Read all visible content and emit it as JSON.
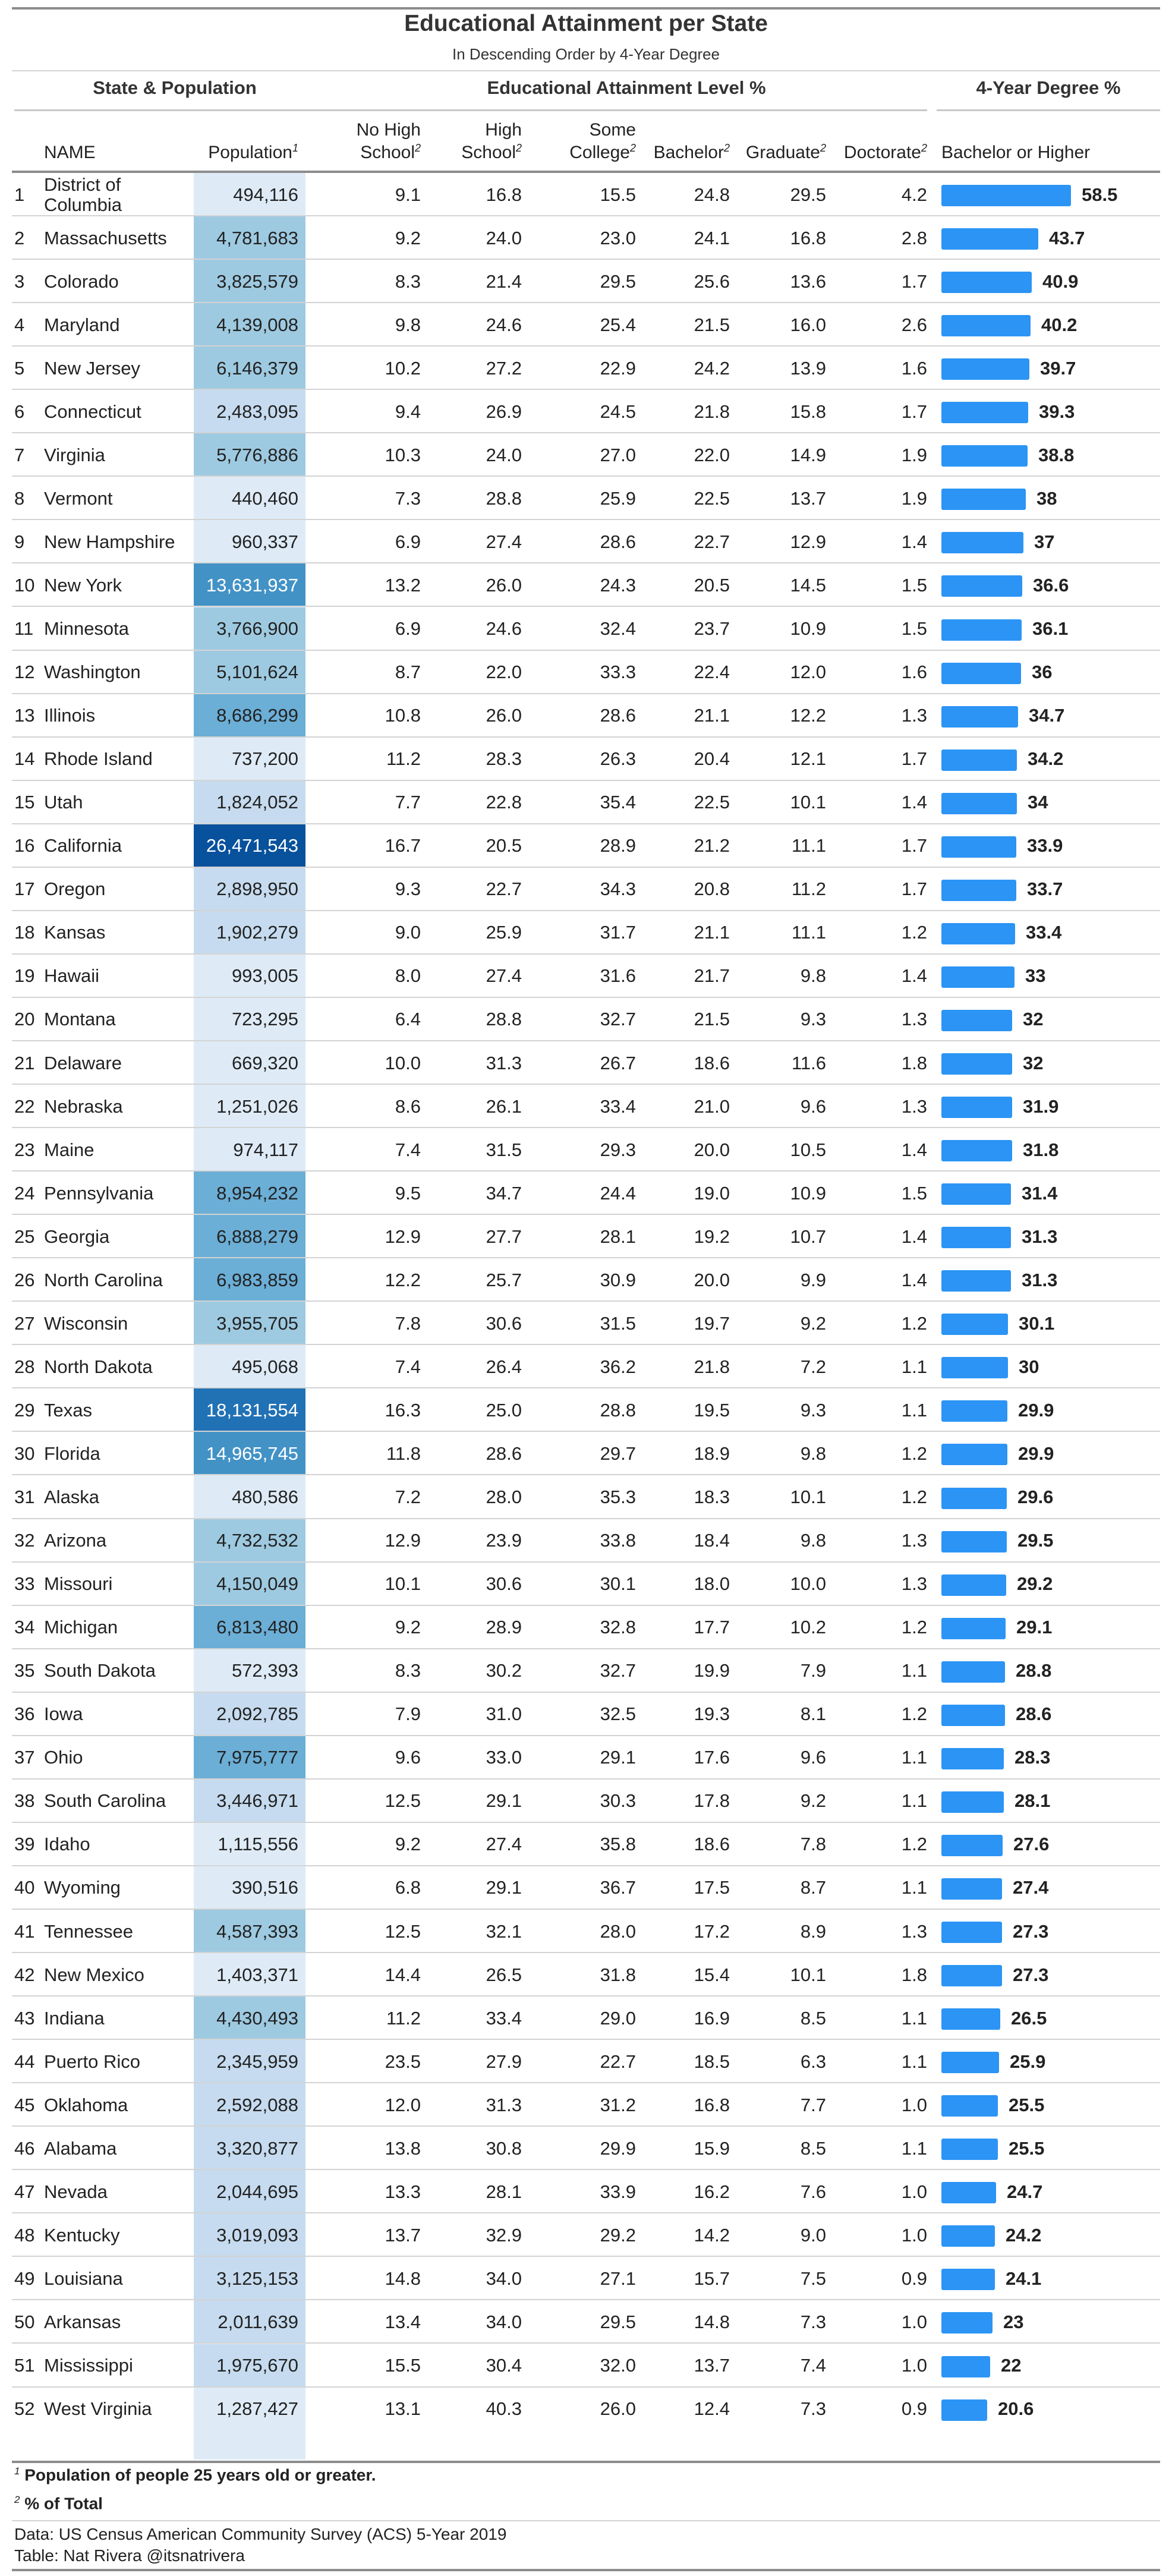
{
  "title": "Educational Attainment per State",
  "subtitle": "In Descending Order by 4-Year Degree",
  "spanners": {
    "state_pop": "State & Population",
    "edu": "Educational Attainment Level %",
    "degree": "4-Year Degree %"
  },
  "columns": {
    "name": "NAME",
    "population": "Population",
    "population_sup": "1",
    "no_hs_1": "No High",
    "no_hs_2": "School",
    "hs_1": "High",
    "hs_2": "School",
    "some_1": "Some",
    "some_2": "College",
    "bachelor": "Bachelor",
    "graduate": "Graduate",
    "doctorate": "Doctorate",
    "pct_sup": "2",
    "degree": "Bachelor or Higher"
  },
  "colors": {
    "bar": "#2b94f4",
    "pop_scale": [
      "#deebf7",
      "#c6dbef",
      "#9ecae1",
      "#6baed6",
      "#4292c6",
      "#2171b5",
      "#08519c"
    ]
  },
  "chart_data": {
    "type": "table",
    "title": "Educational Attainment per State",
    "subtitle": "In Descending Order by 4-Year Degree",
    "bar_column": "Bachelor or Higher",
    "bar_max": 58.5,
    "rows": [
      {
        "rank": "1",
        "name": "District of Columbia",
        "pop": "494,116",
        "no_hs": "9.1",
        "hs": "16.8",
        "some": "15.5",
        "bach": "24.8",
        "grad": "29.5",
        "doc": "4.2",
        "deg": "58.5"
      },
      {
        "rank": "2",
        "name": "Massachusetts",
        "pop": "4,781,683",
        "no_hs": "9.2",
        "hs": "24.0",
        "some": "23.0",
        "bach": "24.1",
        "grad": "16.8",
        "doc": "2.8",
        "deg": "43.7"
      },
      {
        "rank": "3",
        "name": "Colorado",
        "pop": "3,825,579",
        "no_hs": "8.3",
        "hs": "21.4",
        "some": "29.5",
        "bach": "25.6",
        "grad": "13.6",
        "doc": "1.7",
        "deg": "40.9"
      },
      {
        "rank": "4",
        "name": "Maryland",
        "pop": "4,139,008",
        "no_hs": "9.8",
        "hs": "24.6",
        "some": "25.4",
        "bach": "21.5",
        "grad": "16.0",
        "doc": "2.6",
        "deg": "40.2"
      },
      {
        "rank": "5",
        "name": "New Jersey",
        "pop": "6,146,379",
        "no_hs": "10.2",
        "hs": "27.2",
        "some": "22.9",
        "bach": "24.2",
        "grad": "13.9",
        "doc": "1.6",
        "deg": "39.7"
      },
      {
        "rank": "6",
        "name": "Connecticut",
        "pop": "2,483,095",
        "no_hs": "9.4",
        "hs": "26.9",
        "some": "24.5",
        "bach": "21.8",
        "grad": "15.8",
        "doc": "1.7",
        "deg": "39.3"
      },
      {
        "rank": "7",
        "name": "Virginia",
        "pop": "5,776,886",
        "no_hs": "10.3",
        "hs": "24.0",
        "some": "27.0",
        "bach": "22.0",
        "grad": "14.9",
        "doc": "1.9",
        "deg": "38.8"
      },
      {
        "rank": "8",
        "name": "Vermont",
        "pop": "440,460",
        "no_hs": "7.3",
        "hs": "28.8",
        "some": "25.9",
        "bach": "22.5",
        "grad": "13.7",
        "doc": "1.9",
        "deg": "38"
      },
      {
        "rank": "9",
        "name": "New Hampshire",
        "pop": "960,337",
        "no_hs": "6.9",
        "hs": "27.4",
        "some": "28.6",
        "bach": "22.7",
        "grad": "12.9",
        "doc": "1.4",
        "deg": "37"
      },
      {
        "rank": "10",
        "name": "New York",
        "pop": "13,631,937",
        "no_hs": "13.2",
        "hs": "26.0",
        "some": "24.3",
        "bach": "20.5",
        "grad": "14.5",
        "doc": "1.5",
        "deg": "36.6"
      },
      {
        "rank": "11",
        "name": "Minnesota",
        "pop": "3,766,900",
        "no_hs": "6.9",
        "hs": "24.6",
        "some": "32.4",
        "bach": "23.7",
        "grad": "10.9",
        "doc": "1.5",
        "deg": "36.1"
      },
      {
        "rank": "12",
        "name": "Washington",
        "pop": "5,101,624",
        "no_hs": "8.7",
        "hs": "22.0",
        "some": "33.3",
        "bach": "22.4",
        "grad": "12.0",
        "doc": "1.6",
        "deg": "36"
      },
      {
        "rank": "13",
        "name": "Illinois",
        "pop": "8,686,299",
        "no_hs": "10.8",
        "hs": "26.0",
        "some": "28.6",
        "bach": "21.1",
        "grad": "12.2",
        "doc": "1.3",
        "deg": "34.7"
      },
      {
        "rank": "14",
        "name": "Rhode Island",
        "pop": "737,200",
        "no_hs": "11.2",
        "hs": "28.3",
        "some": "26.3",
        "bach": "20.4",
        "grad": "12.1",
        "doc": "1.7",
        "deg": "34.2"
      },
      {
        "rank": "15",
        "name": "Utah",
        "pop": "1,824,052",
        "no_hs": "7.7",
        "hs": "22.8",
        "some": "35.4",
        "bach": "22.5",
        "grad": "10.1",
        "doc": "1.4",
        "deg": "34"
      },
      {
        "rank": "16",
        "name": "California",
        "pop": "26,471,543",
        "no_hs": "16.7",
        "hs": "20.5",
        "some": "28.9",
        "bach": "21.2",
        "grad": "11.1",
        "doc": "1.7",
        "deg": "33.9"
      },
      {
        "rank": "17",
        "name": "Oregon",
        "pop": "2,898,950",
        "no_hs": "9.3",
        "hs": "22.7",
        "some": "34.3",
        "bach": "20.8",
        "grad": "11.2",
        "doc": "1.7",
        "deg": "33.7"
      },
      {
        "rank": "18",
        "name": "Kansas",
        "pop": "1,902,279",
        "no_hs": "9.0",
        "hs": "25.9",
        "some": "31.7",
        "bach": "21.1",
        "grad": "11.1",
        "doc": "1.2",
        "deg": "33.4"
      },
      {
        "rank": "19",
        "name": "Hawaii",
        "pop": "993,005",
        "no_hs": "8.0",
        "hs": "27.4",
        "some": "31.6",
        "bach": "21.7",
        "grad": "9.8",
        "doc": "1.4",
        "deg": "33"
      },
      {
        "rank": "20",
        "name": "Montana",
        "pop": "723,295",
        "no_hs": "6.4",
        "hs": "28.8",
        "some": "32.7",
        "bach": "21.5",
        "grad": "9.3",
        "doc": "1.3",
        "deg": "32"
      },
      {
        "rank": "21",
        "name": "Delaware",
        "pop": "669,320",
        "no_hs": "10.0",
        "hs": "31.3",
        "some": "26.7",
        "bach": "18.6",
        "grad": "11.6",
        "doc": "1.8",
        "deg": "32"
      },
      {
        "rank": "22",
        "name": "Nebraska",
        "pop": "1,251,026",
        "no_hs": "8.6",
        "hs": "26.1",
        "some": "33.4",
        "bach": "21.0",
        "grad": "9.6",
        "doc": "1.3",
        "deg": "31.9"
      },
      {
        "rank": "23",
        "name": "Maine",
        "pop": "974,117",
        "no_hs": "7.4",
        "hs": "31.5",
        "some": "29.3",
        "bach": "20.0",
        "grad": "10.5",
        "doc": "1.4",
        "deg": "31.8"
      },
      {
        "rank": "24",
        "name": "Pennsylvania",
        "pop": "8,954,232",
        "no_hs": "9.5",
        "hs": "34.7",
        "some": "24.4",
        "bach": "19.0",
        "grad": "10.9",
        "doc": "1.5",
        "deg": "31.4"
      },
      {
        "rank": "25",
        "name": "Georgia",
        "pop": "6,888,279",
        "no_hs": "12.9",
        "hs": "27.7",
        "some": "28.1",
        "bach": "19.2",
        "grad": "10.7",
        "doc": "1.4",
        "deg": "31.3"
      },
      {
        "rank": "26",
        "name": "North Carolina",
        "pop": "6,983,859",
        "no_hs": "12.2",
        "hs": "25.7",
        "some": "30.9",
        "bach": "20.0",
        "grad": "9.9",
        "doc": "1.4",
        "deg": "31.3"
      },
      {
        "rank": "27",
        "name": "Wisconsin",
        "pop": "3,955,705",
        "no_hs": "7.8",
        "hs": "30.6",
        "some": "31.5",
        "bach": "19.7",
        "grad": "9.2",
        "doc": "1.2",
        "deg": "30.1"
      },
      {
        "rank": "28",
        "name": "North Dakota",
        "pop": "495,068",
        "no_hs": "7.4",
        "hs": "26.4",
        "some": "36.2",
        "bach": "21.8",
        "grad": "7.2",
        "doc": "1.1",
        "deg": "30"
      },
      {
        "rank": "29",
        "name": "Texas",
        "pop": "18,131,554",
        "no_hs": "16.3",
        "hs": "25.0",
        "some": "28.8",
        "bach": "19.5",
        "grad": "9.3",
        "doc": "1.1",
        "deg": "29.9"
      },
      {
        "rank": "30",
        "name": "Florida",
        "pop": "14,965,745",
        "no_hs": "11.8",
        "hs": "28.6",
        "some": "29.7",
        "bach": "18.9",
        "grad": "9.8",
        "doc": "1.2",
        "deg": "29.9"
      },
      {
        "rank": "31",
        "name": "Alaska",
        "pop": "480,586",
        "no_hs": "7.2",
        "hs": "28.0",
        "some": "35.3",
        "bach": "18.3",
        "grad": "10.1",
        "doc": "1.2",
        "deg": "29.6"
      },
      {
        "rank": "32",
        "name": "Arizona",
        "pop": "4,732,532",
        "no_hs": "12.9",
        "hs": "23.9",
        "some": "33.8",
        "bach": "18.4",
        "grad": "9.8",
        "doc": "1.3",
        "deg": "29.5"
      },
      {
        "rank": "33",
        "name": "Missouri",
        "pop": "4,150,049",
        "no_hs": "10.1",
        "hs": "30.6",
        "some": "30.1",
        "bach": "18.0",
        "grad": "10.0",
        "doc": "1.3",
        "deg": "29.2"
      },
      {
        "rank": "34",
        "name": "Michigan",
        "pop": "6,813,480",
        "no_hs": "9.2",
        "hs": "28.9",
        "some": "32.8",
        "bach": "17.7",
        "grad": "10.2",
        "doc": "1.2",
        "deg": "29.1"
      },
      {
        "rank": "35",
        "name": "South Dakota",
        "pop": "572,393",
        "no_hs": "8.3",
        "hs": "30.2",
        "some": "32.7",
        "bach": "19.9",
        "grad": "7.9",
        "doc": "1.1",
        "deg": "28.8"
      },
      {
        "rank": "36",
        "name": "Iowa",
        "pop": "2,092,785",
        "no_hs": "7.9",
        "hs": "31.0",
        "some": "32.5",
        "bach": "19.3",
        "grad": "8.1",
        "doc": "1.2",
        "deg": "28.6"
      },
      {
        "rank": "37",
        "name": "Ohio",
        "pop": "7,975,777",
        "no_hs": "9.6",
        "hs": "33.0",
        "some": "29.1",
        "bach": "17.6",
        "grad": "9.6",
        "doc": "1.1",
        "deg": "28.3"
      },
      {
        "rank": "38",
        "name": "South Carolina",
        "pop": "3,446,971",
        "no_hs": "12.5",
        "hs": "29.1",
        "some": "30.3",
        "bach": "17.8",
        "grad": "9.2",
        "doc": "1.1",
        "deg": "28.1"
      },
      {
        "rank": "39",
        "name": "Idaho",
        "pop": "1,115,556",
        "no_hs": "9.2",
        "hs": "27.4",
        "some": "35.8",
        "bach": "18.6",
        "grad": "7.8",
        "doc": "1.2",
        "deg": "27.6"
      },
      {
        "rank": "40",
        "name": "Wyoming",
        "pop": "390,516",
        "no_hs": "6.8",
        "hs": "29.1",
        "some": "36.7",
        "bach": "17.5",
        "grad": "8.7",
        "doc": "1.1",
        "deg": "27.4"
      },
      {
        "rank": "41",
        "name": "Tennessee",
        "pop": "4,587,393",
        "no_hs": "12.5",
        "hs": "32.1",
        "some": "28.0",
        "bach": "17.2",
        "grad": "8.9",
        "doc": "1.3",
        "deg": "27.3"
      },
      {
        "rank": "42",
        "name": "New Mexico",
        "pop": "1,403,371",
        "no_hs": "14.4",
        "hs": "26.5",
        "some": "31.8",
        "bach": "15.4",
        "grad": "10.1",
        "doc": "1.8",
        "deg": "27.3"
      },
      {
        "rank": "43",
        "name": "Indiana",
        "pop": "4,430,493",
        "no_hs": "11.2",
        "hs": "33.4",
        "some": "29.0",
        "bach": "16.9",
        "grad": "8.5",
        "doc": "1.1",
        "deg": "26.5"
      },
      {
        "rank": "44",
        "name": "Puerto Rico",
        "pop": "2,345,959",
        "no_hs": "23.5",
        "hs": "27.9",
        "some": "22.7",
        "bach": "18.5",
        "grad": "6.3",
        "doc": "1.1",
        "deg": "25.9"
      },
      {
        "rank": "45",
        "name": "Oklahoma",
        "pop": "2,592,088",
        "no_hs": "12.0",
        "hs": "31.3",
        "some": "31.2",
        "bach": "16.8",
        "grad": "7.7",
        "doc": "1.0",
        "deg": "25.5"
      },
      {
        "rank": "46",
        "name": "Alabama",
        "pop": "3,320,877",
        "no_hs": "13.8",
        "hs": "30.8",
        "some": "29.9",
        "bach": "15.9",
        "grad": "8.5",
        "doc": "1.1",
        "deg": "25.5"
      },
      {
        "rank": "47",
        "name": "Nevada",
        "pop": "2,044,695",
        "no_hs": "13.3",
        "hs": "28.1",
        "some": "33.9",
        "bach": "16.2",
        "grad": "7.6",
        "doc": "1.0",
        "deg": "24.7"
      },
      {
        "rank": "48",
        "name": "Kentucky",
        "pop": "3,019,093",
        "no_hs": "13.7",
        "hs": "32.9",
        "some": "29.2",
        "bach": "14.2",
        "grad": "9.0",
        "doc": "1.0",
        "deg": "24.2"
      },
      {
        "rank": "49",
        "name": "Louisiana",
        "pop": "3,125,153",
        "no_hs": "14.8",
        "hs": "34.0",
        "some": "27.1",
        "bach": "15.7",
        "grad": "7.5",
        "doc": "0.9",
        "deg": "24.1"
      },
      {
        "rank": "50",
        "name": "Arkansas",
        "pop": "2,011,639",
        "no_hs": "13.4",
        "hs": "34.0",
        "some": "29.5",
        "bach": "14.8",
        "grad": "7.3",
        "doc": "1.0",
        "deg": "23"
      },
      {
        "rank": "51",
        "name": "Mississippi",
        "pop": "1,975,670",
        "no_hs": "15.5",
        "hs": "30.4",
        "some": "32.0",
        "bach": "13.7",
        "grad": "7.4",
        "doc": "1.0",
        "deg": "22"
      },
      {
        "rank": "52",
        "name": "West Virginia",
        "pop": "1,287,427",
        "no_hs": "13.1",
        "hs": "40.3",
        "some": "26.0",
        "bach": "12.4",
        "grad": "7.3",
        "doc": "0.9",
        "deg": "20.6"
      }
    ]
  },
  "footnotes": {
    "n1_sup": "1",
    "n1_text": "Population of people 25 years old or greater.",
    "n2_sup": "2",
    "n2_text": "% of Total"
  },
  "source": {
    "line1": "Data: US Census American Community Survey (ACS) 5-Year 2019",
    "line2": "Table: Nat Rivera @itsnatrivera"
  }
}
